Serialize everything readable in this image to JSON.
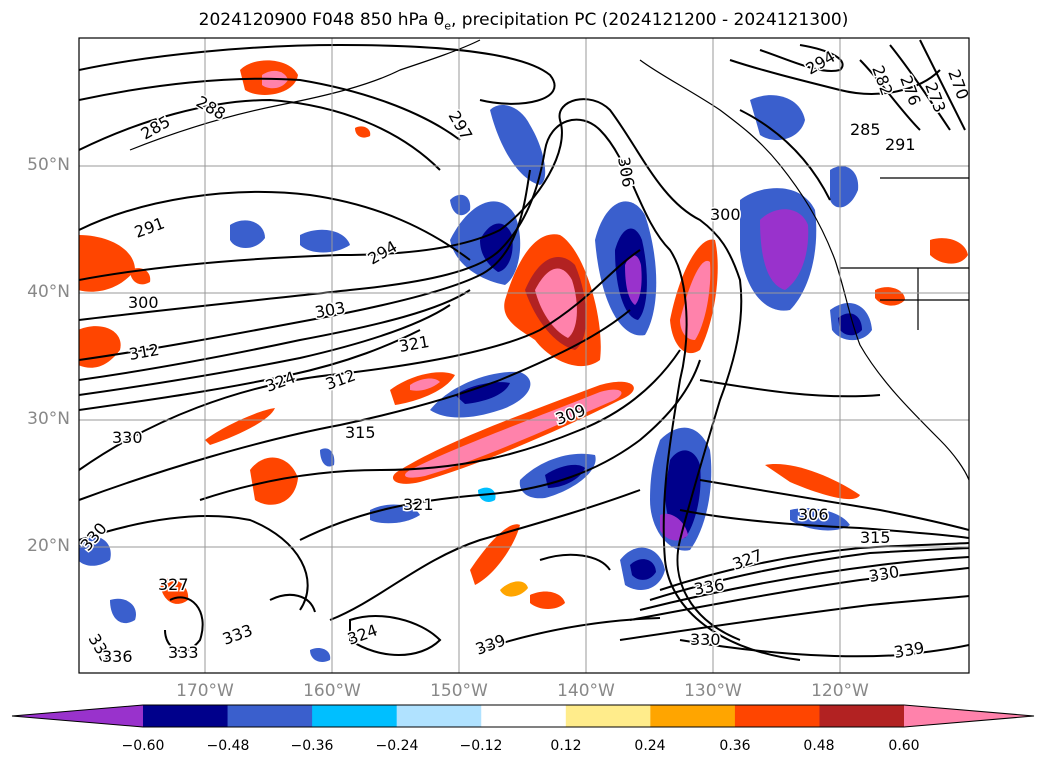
{
  "title": "2024120900 F048 850 hPa θ",
  "title_sub": "e",
  "title_rest": ", precipitation PC (2024121200 - 2024121300)",
  "lat_labels": [
    "50°N",
    "40°N",
    "30°N",
    "20°N"
  ],
  "lon_labels": [
    "170°W",
    "160°W",
    "150°W",
    "140°W",
    "130°W",
    "120°W"
  ],
  "colorbar": {
    "ticks": [
      "−0.60",
      "−0.48",
      "−0.36",
      "−0.24",
      "−0.12",
      "0.12",
      "0.24",
      "0.36",
      "0.48",
      "0.60"
    ],
    "colors": [
      "#9932CC",
      "#00008B",
      "#3A5FCD",
      "#00BFFF",
      "#B0E2FF",
      "#FFFFFF",
      "#FFEC8B",
      "#FFA500",
      "#FF4500",
      "#B22222",
      "#FF82AB"
    ]
  },
  "contour_labels": [
    "285",
    "288",
    "297",
    "306",
    "291",
    "294",
    "300",
    "303",
    "312",
    "321",
    "324",
    "312",
    "315",
    "330",
    "309",
    "330",
    "321",
    "306",
    "315",
    "327",
    "336",
    "330",
    "339",
    "339",
    "333",
    "324",
    "333",
    "336",
    "333",
    "330",
    "327",
    "300",
    "294",
    "282",
    "276",
    "273",
    "270",
    "285",
    "291"
  ],
  "chart_data": {
    "type": "map",
    "title": "2024120900 F048 850 hPa θe, precipitation PC (2024121200 - 2024121300)",
    "lon_range": [
      "-178",
      "-109"
    ],
    "lat_range": [
      "10",
      "60"
    ],
    "lon_ticks": [
      "170°W",
      "160°W",
      "150°W",
      "140°W",
      "130°W",
      "120°W"
    ],
    "lat_ticks": [
      "50°N",
      "40°N",
      "30°N",
      "20°N"
    ],
    "fill_field": "precipitation PC",
    "contour_field": "850 hPa θe (K)",
    "colorbar_levels": [
      -0.6,
      -0.48,
      -0.36,
      -0.24,
      -0.12,
      0.12,
      0.24,
      0.36,
      0.48,
      0.6
    ],
    "grid": true
  }
}
